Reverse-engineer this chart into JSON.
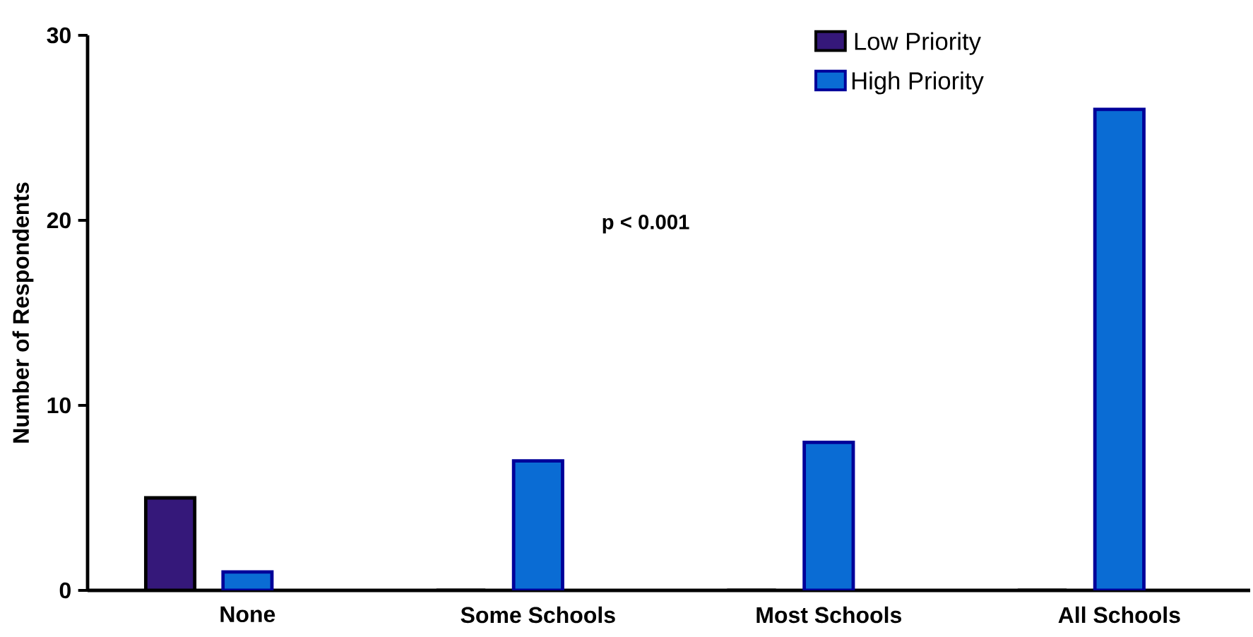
{
  "chart_data": {
    "type": "bar",
    "ylabel": "Number of Respondents",
    "categories": [
      "None",
      "Some Schools",
      "Most Schools",
      "All Schools"
    ],
    "series": [
      {
        "name": "Low Priority",
        "color": "#35187a",
        "values": [
          5,
          0,
          0,
          0
        ]
      },
      {
        "name": "High Priority",
        "color": "#0a6cd4",
        "values": [
          1,
          7,
          8,
          26
        ]
      }
    ],
    "ylim": [
      0,
      30
    ],
    "yticks": [
      0,
      10,
      20,
      30
    ],
    "grid": false,
    "legend": "top right",
    "annotations": [
      "p < 0.001"
    ]
  }
}
